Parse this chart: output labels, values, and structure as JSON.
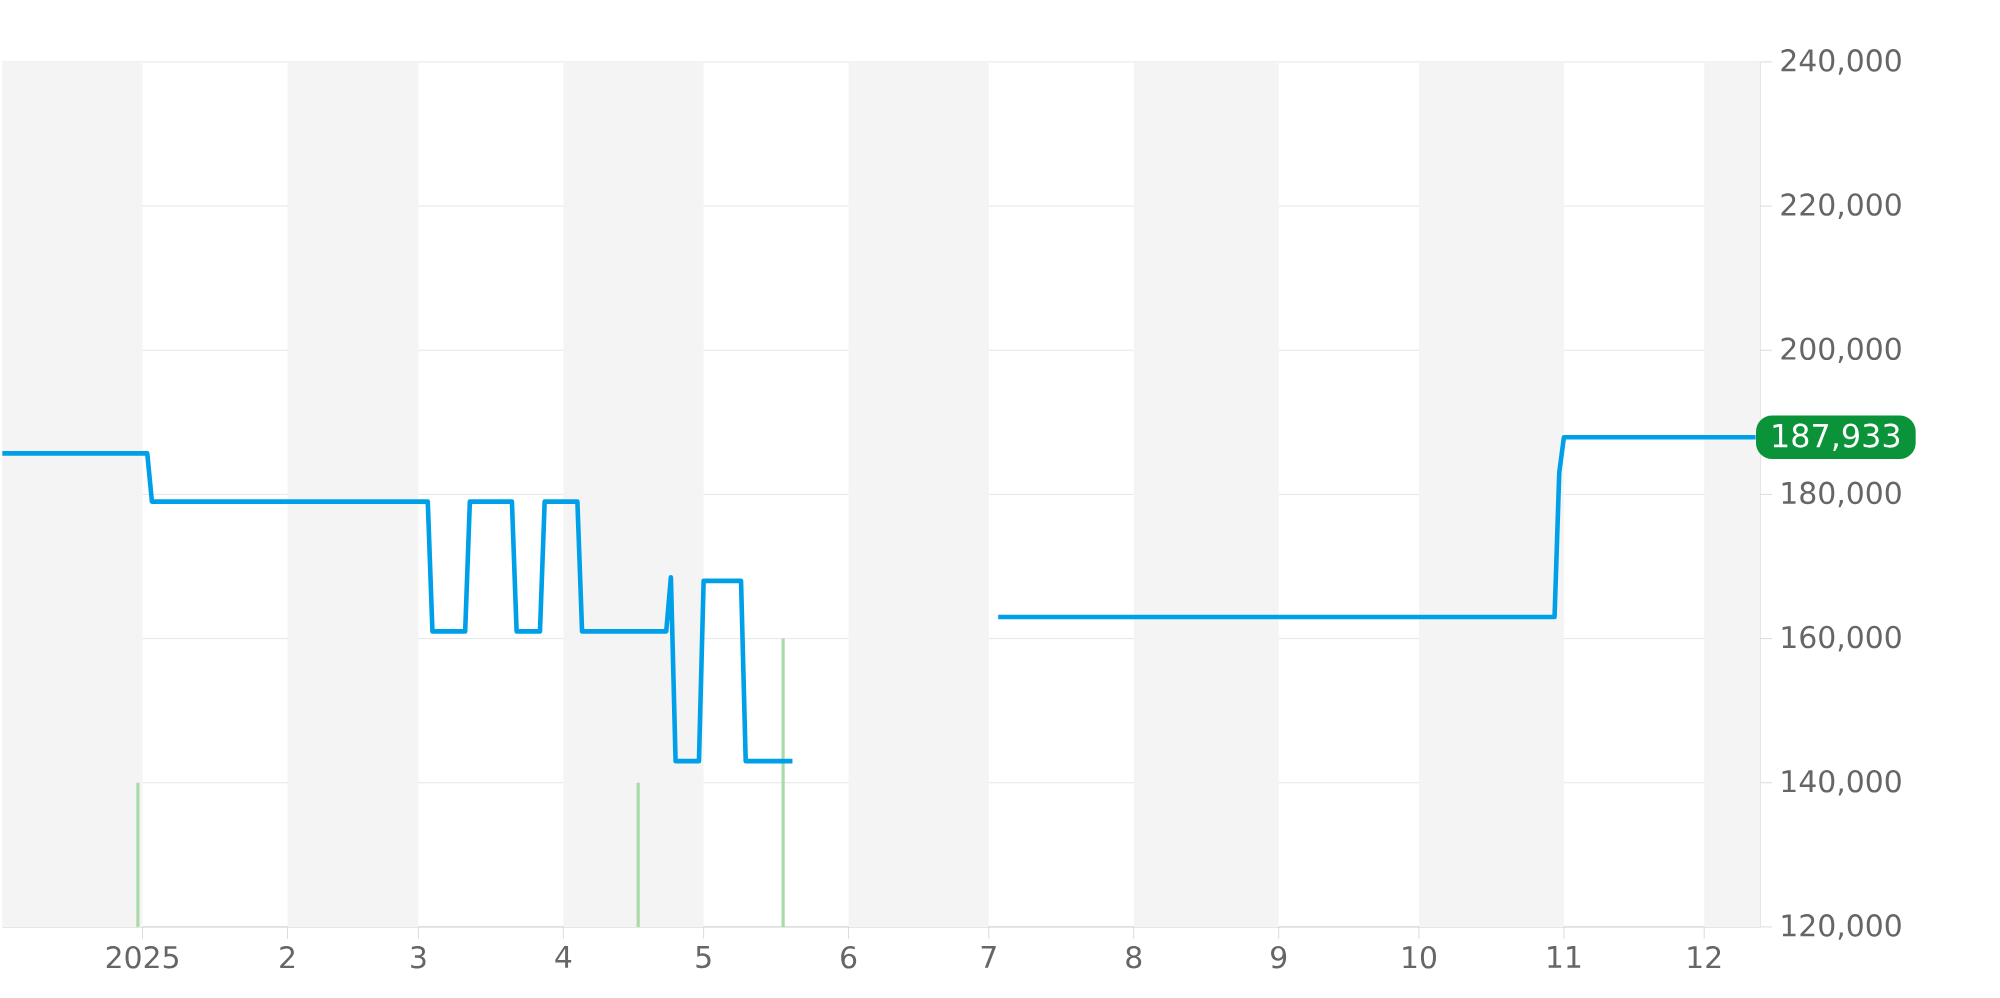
{
  "chart_data": {
    "type": "line",
    "xlim": [
      "2024-12-02",
      "2025-12-13"
    ],
    "xticks": [
      {
        "value": "2025-01-01",
        "label": "2025"
      },
      {
        "value": "2025-02-01",
        "label": "2"
      },
      {
        "value": "2025-03-01",
        "label": "3"
      },
      {
        "value": "2025-04-01",
        "label": "4"
      },
      {
        "value": "2025-05-01",
        "label": "5"
      },
      {
        "value": "2025-06-01",
        "label": "6"
      },
      {
        "value": "2025-07-01",
        "label": "7"
      },
      {
        "value": "2025-08-01",
        "label": "8"
      },
      {
        "value": "2025-09-01",
        "label": "9"
      },
      {
        "value": "2025-10-01",
        "label": "10"
      },
      {
        "value": "2025-11-01",
        "label": "11"
      },
      {
        "value": "2025-12-01",
        "label": "12"
      }
    ],
    "ylim": [
      120000,
      240000
    ],
    "yticks": [
      {
        "value": 120000,
        "label": "120,000"
      },
      {
        "value": 140000,
        "label": "140,000"
      },
      {
        "value": 160000,
        "label": "160,000"
      },
      {
        "value": 180000,
        "label": "180,000"
      },
      {
        "value": 200000,
        "label": "200,000"
      },
      {
        "value": 220000,
        "label": "220,000"
      },
      {
        "value": 240000,
        "label": "240,000"
      }
    ],
    "grid": "y",
    "marker": "none",
    "line_style": "solid",
    "bands": [
      {
        "axis": "x",
        "from": "2024-12-02",
        "to": "2025-01-01",
        "color": "#f4f4f4"
      },
      {
        "axis": "x",
        "from": "2025-02-01",
        "to": "2025-03-01",
        "color": "#f4f4f4"
      },
      {
        "axis": "x",
        "from": "2025-04-01",
        "to": "2025-05-01",
        "color": "#f4f4f4"
      },
      {
        "axis": "x",
        "from": "2025-06-01",
        "to": "2025-07-01",
        "color": "#f4f4f4"
      },
      {
        "axis": "x",
        "from": "2025-08-01",
        "to": "2025-09-01",
        "color": "#f4f4f4"
      },
      {
        "axis": "x",
        "from": "2025-10-01",
        "to": "2025-11-01",
        "color": "#f4f4f4"
      },
      {
        "axis": "x",
        "from": "2025-12-01",
        "to": "2025-12-13",
        "color": "#f4f4f4"
      }
    ],
    "series": [
      {
        "type": "bar",
        "color": "#a8dba8",
        "x": [
          "2024-12-31",
          "2025-04-17",
          "2025-05-18"
        ],
        "values": [
          140000,
          140000,
          160000
        ]
      },
      {
        "color": "#00a0e9",
        "x": [
          "2024-12-02",
          "2025-01-02",
          "2025-01-03",
          "2025-03-03",
          "2025-03-04",
          "2025-03-11",
          "2025-03-12",
          "2025-03-21",
          "2025-03-22",
          "2025-03-27",
          "2025-03-28",
          "2025-04-04",
          "2025-04-05",
          "2025-04-23",
          "2025-04-24",
          "2025-04-25",
          "2025-04-30",
          "2025-05-01",
          "2025-05-09",
          "2025-05-10",
          "2025-05-20",
          "2025-06-10",
          "2025-07-03",
          "2025-10-30",
          "2025-10-31",
          "2025-11-01",
          "2025-12-12"
        ],
        "values": [
          185700,
          185700,
          179000,
          179000,
          161000,
          161000,
          179000,
          179000,
          161000,
          161000,
          179000,
          179000,
          161000,
          161000,
          168500,
          143000,
          143000,
          168000,
          168000,
          143000,
          143000,
          null,
          163000,
          163000,
          183000,
          187933,
          187933
        ]
      }
    ],
    "annotations": [
      {
        "text": "187,933",
        "x": "2025-12-12",
        "y": 187933
      }
    ]
  }
}
